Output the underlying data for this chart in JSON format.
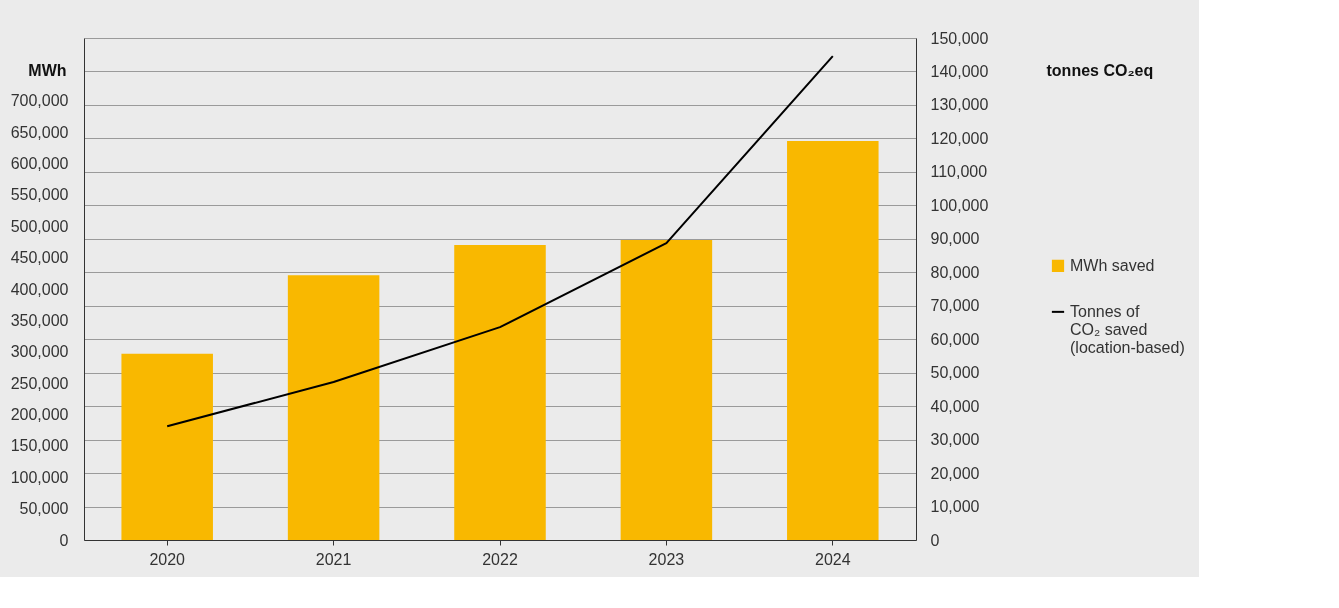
{
  "chart_data": {
    "type": "bar",
    "categories": [
      "2020",
      "2021",
      "2022",
      "2023",
      "2024"
    ],
    "ylabel": "MWh",
    "y2label": "tonnes CO₂eq",
    "ylim": [
      0,
      800000
    ],
    "yticks": [
      0,
      {
        "value": 50000,
        "label": "50,000"
      },
      {
        "value": 100000,
        "label": "100,000"
      },
      {
        "value": 150000,
        "label": "150,000"
      },
      {
        "value": 200000,
        "label": "200,000"
      },
      {
        "value": 250000,
        "label": "250,000"
      },
      {
        "value": 300000,
        "label": "300,000"
      },
      {
        "value": 350000,
        "label": "350,000"
      },
      {
        "value": 400000,
        "label": "400,000"
      },
      {
        "value": 450000,
        "label": "450,000"
      },
      {
        "value": 500000,
        "label": "500,000"
      },
      {
        "value": 550000,
        "label": "550,000"
      },
      {
        "value": 600000,
        "label": "600,000"
      },
      {
        "value": 650000,
        "label": "650,000"
      },
      {
        "value": 700000,
        "label": "700,000"
      }
    ],
    "y2lim": [
      0,
      150000
    ],
    "y2ticks": [
      0,
      {
        "value": 10000,
        "label": "10,000"
      },
      {
        "value": 20000,
        "label": "20,000"
      },
      {
        "value": 30000,
        "label": "30,000"
      },
      {
        "value": 40000,
        "label": "40,000"
      },
      {
        "value": 50000,
        "label": "50,000"
      },
      {
        "value": 60000,
        "label": "60,000"
      },
      {
        "value": 70000,
        "label": "70,000"
      },
      {
        "value": 80000,
        "label": "80,000"
      },
      {
        "value": 90000,
        "label": "90,000"
      },
      {
        "value": 100000,
        "label": "100,000"
      },
      {
        "value": 110000,
        "label": "110,000"
      },
      {
        "value": 120000,
        "label": "120,000"
      },
      {
        "value": 130000,
        "label": "130,000"
      },
      {
        "value": 140000,
        "label": "140,000"
      },
      {
        "value": 150000,
        "label": "150,000"
      }
    ],
    "grid": true,
    "legend": "right",
    "series": [
      {
        "name": "MWh saved",
        "color": "#f9b800",
        "values": [
          297000,
          422000,
          470000,
          478000,
          636000
        ]
      },
      {
        "name": "Tonnes of CO₂ saved (location-based)",
        "type": "line",
        "axis": "y2",
        "color": "#000000",
        "values": [
          34000,
          47200,
          63600,
          88700,
          144600
        ]
      }
    ]
  }
}
